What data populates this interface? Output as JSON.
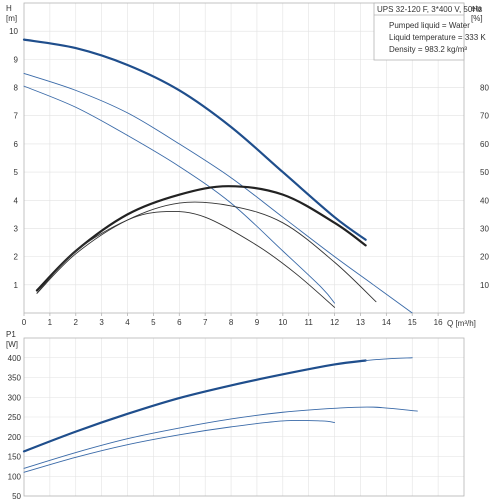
{
  "chart_data": [
    {
      "type": "line",
      "panel": "head",
      "title": "UPS 32-120 F, 3*400 V, 50Hz",
      "xlabel": "Q [m³/h]",
      "ylabel_left_name": "H",
      "ylabel_left_unit": "[m]",
      "ylabel_right_name": "eta",
      "ylabel_right_unit": "[%]",
      "xlim": [
        0,
        17
      ],
      "ylim": [
        0,
        11
      ],
      "y2lim": [
        0,
        110
      ],
      "x_ticks": [
        "0",
        "1",
        "2",
        "3",
        "4",
        "5",
        "6",
        "7",
        "8",
        "9",
        "10",
        "11",
        "12",
        "13",
        "14",
        "15",
        "16"
      ],
      "y_ticks": [
        "1",
        "2",
        "3",
        "4",
        "5",
        "6",
        "7",
        "8",
        "9",
        "10"
      ],
      "y2_ticks": [
        "10",
        "20",
        "30",
        "40",
        "50",
        "60",
        "70",
        "80"
      ],
      "grid": true,
      "legend": [
        "Pumped liquid = Water",
        "Liquid temperature = 333 K",
        "Density = 983.2 kg/m³"
      ],
      "series": [
        {
          "role": "head",
          "style": "bold",
          "color": "#1f4e8c",
          "x": [
            0,
            2,
            4,
            6,
            8,
            10,
            12,
            13.2
          ],
          "y": [
            9.7,
            9.4,
            8.8,
            7.9,
            6.6,
            5.0,
            3.4,
            2.6
          ]
        },
        {
          "role": "head",
          "style": "thin",
          "color": "#3a6aa8",
          "x": [
            0,
            2,
            4,
            6,
            8,
            10,
            12,
            13.5,
            15
          ],
          "y": [
            8.5,
            7.9,
            7.1,
            6.0,
            4.8,
            3.4,
            2.0,
            1.0,
            0
          ]
        },
        {
          "role": "head",
          "style": "thin",
          "color": "#3a6aa8",
          "x": [
            0,
            2,
            4,
            6,
            8,
            10,
            11.5,
            12
          ],
          "y": [
            8.05,
            7.3,
            6.3,
            5.2,
            3.9,
            2.2,
            0.9,
            0.35
          ]
        },
        {
          "role": "eta",
          "style": "bold",
          "color": "#222222",
          "x": [
            0.5,
            2,
            4,
            6,
            7.9,
            10,
            12,
            13.2
          ],
          "y": [
            8,
            22,
            35,
            42,
            45,
            42,
            32,
            24
          ]
        },
        {
          "role": "eta",
          "style": "thin",
          "color": "#333333",
          "x": [
            0.5,
            2,
            4,
            6,
            8,
            10,
            12,
            13.6
          ],
          "y": [
            7,
            21,
            33,
            39,
            38,
            32,
            18,
            4
          ]
        },
        {
          "role": "eta",
          "style": "thin",
          "color": "#333333",
          "x": [
            0.5,
            2,
            4,
            5.5,
            7,
            9,
            10.5,
            12
          ],
          "y": [
            7,
            22,
            33,
            36,
            34,
            24,
            14,
            2
          ]
        }
      ]
    },
    {
      "type": "line",
      "panel": "power",
      "ylabel_name": "P1",
      "ylabel_unit": "[W]",
      "xlim": [
        0,
        17
      ],
      "ylim": [
        50,
        450
      ],
      "y_ticks": [
        "50",
        "100",
        "150",
        "200",
        "250",
        "300",
        "350",
        "400"
      ],
      "grid": true,
      "series": [
        {
          "style": "bold",
          "color": "#1f4e8c",
          "x": [
            0,
            2,
            4,
            6,
            8,
            10,
            12,
            13.2
          ],
          "y": [
            163,
            213,
            258,
            298,
            330,
            358,
            383,
            393
          ]
        },
        {
          "style": "thin",
          "color": "#3a6aa8",
          "x": [
            13.2,
            14,
            15
          ],
          "y": [
            393,
            397,
            400
          ]
        },
        {
          "style": "thin",
          "color": "#3a6aa8",
          "x": [
            0,
            2,
            4,
            6,
            8,
            10,
            12,
            13.5,
            15.2
          ],
          "y": [
            120,
            160,
            195,
            222,
            245,
            262,
            272,
            275,
            265
          ]
        },
        {
          "style": "thin",
          "color": "#3a6aa8",
          "x": [
            0,
            2,
            4,
            6,
            8,
            10,
            11.5,
            12
          ],
          "y": [
            110,
            148,
            180,
            205,
            225,
            240,
            240,
            236
          ]
        }
      ]
    }
  ]
}
